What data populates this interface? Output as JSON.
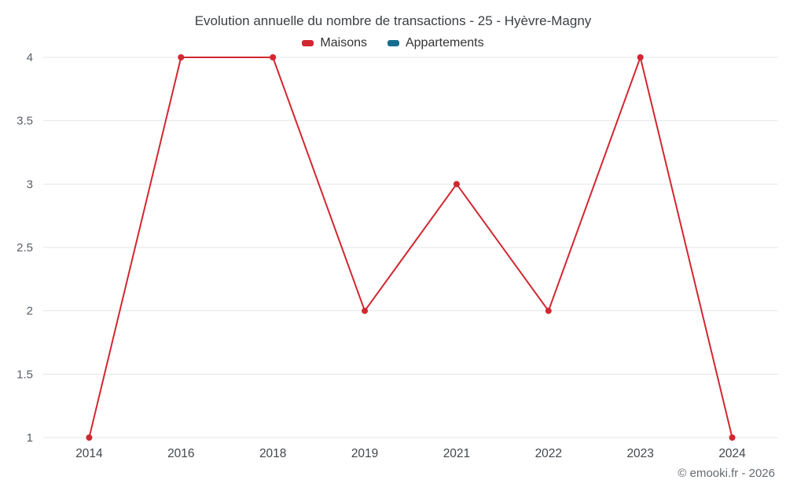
{
  "chart_data": {
    "type": "line",
    "title": "Evolution annuelle du nombre de transactions - 25 - Hyèvre-Magny",
    "categories": [
      "2014",
      "2016",
      "2018",
      "2019",
      "2021",
      "2022",
      "2023",
      "2024"
    ],
    "series": [
      {
        "name": "Maisons",
        "color": "#d22730",
        "values": [
          1,
          4,
          4,
          2,
          3,
          2,
          4,
          1
        ]
      },
      {
        "name": "Appartements",
        "color": "#176d8f",
        "values": []
      }
    ],
    "xlabel": "",
    "ylabel": "",
    "ylim": [
      1,
      4
    ],
    "yticks": [
      1,
      1.5,
      2,
      2.5,
      3,
      3.5,
      4
    ],
    "grid": true,
    "legend_position": "top"
  },
  "footer": {
    "credit": "© emooki.fr - 2026"
  }
}
